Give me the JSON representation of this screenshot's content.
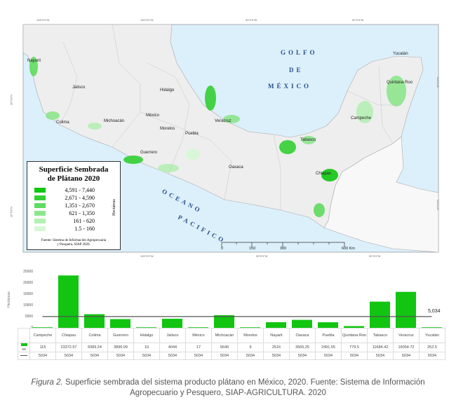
{
  "map": {
    "coords_top": [
      "105°0'0\"W",
      "100°0'0\"W",
      "95°0'0\"W",
      "90°0'0\"W"
    ],
    "coords_bottom": [
      "105°0'0\"W",
      "100°0'0\"W",
      "95°0'0\"W",
      "90°0'0\"W"
    ],
    "coords_left": [
      "20°0'0\"N",
      "15°0'0\"N"
    ],
    "coords_right": [
      "20°0'0\"N",
      "15°0'0\"N"
    ],
    "sea_labels": {
      "golfo": "GOLFO",
      "de": "DE",
      "mexico": "MÉXICO",
      "oceano": "OCEANO",
      "pacifico": "PACIFICO"
    },
    "states": [
      "Nayarit",
      "Jalisco",
      "Colima",
      "Michoacán",
      "Guerrero",
      "Hidalgo",
      "México",
      "Morelos",
      "Puebla",
      "Veracruz",
      "Oaxaca",
      "Tabasco",
      "Chiapas",
      "Campeche",
      "Yucatán",
      "Quintana Roo"
    ],
    "scale": {
      "ticks": [
        "0",
        "150",
        "300",
        "600 Km"
      ]
    },
    "legend": {
      "title_line1": "Superficie Sembrada",
      "title_line2": "de Plátano 2020",
      "unit": "Hectáreas",
      "classes": [
        {
          "range": "4,591  - 7,440",
          "color": "#11c511"
        },
        {
          "range": "2,671  - 4,590",
          "color": "#33cf33"
        },
        {
          "range": "1,351  - 2,670",
          "color": "#5fdb5f"
        },
        {
          "range": "621  - 1,350",
          "color": "#8de68d"
        },
        {
          "range": "161  -    620",
          "color": "#b5f0b5"
        },
        {
          "range": "1.5 -   160",
          "color": "#d6f8d6"
        }
      ],
      "source_line1": "Fuente: Sistema de Información Agropecuaria",
      "source_line2": "y Pesquera, SIAP 2020."
    }
  },
  "chart_data": {
    "type": "bar",
    "ylabel": "Hectáreas",
    "ylim": [
      0,
      25000
    ],
    "yticks": [
      "0",
      "5000",
      "10000",
      "15000",
      "20000",
      "25000"
    ],
    "categories": [
      "Campeche",
      "Chiapas",
      "Colima",
      "Guerrero",
      "Hidalgo",
      "Jalisco",
      "México",
      "Michoacán",
      "Morelos",
      "Nayarit",
      "Oaxaca",
      "Puebla",
      "Quintana Roo",
      "Tabasco",
      "Veracruz",
      "Yucatán"
    ],
    "series": [
      {
        "name": "ss",
        "color": "#11c511",
        "values": [
          115,
          23372.57,
          6089.24,
          3896.99,
          10,
          4044,
          17,
          5649,
          9,
          2516,
          3565.25,
          2491.55,
          779.5,
          11684.42,
          16054.72,
          252.5
        ],
        "labels": [
          "115",
          "23372.57",
          "6089.24",
          "3896.99",
          "10",
          "4044",
          "17",
          "5649",
          "9",
          "2516",
          "3565.25",
          "2491.55",
          "779.5",
          "11684.42",
          "16054.72",
          "252.5"
        ]
      },
      {
        "name": "",
        "color": "#555555",
        "type": "line",
        "values": [
          5034,
          5034,
          5034,
          5034,
          5034,
          5034,
          5034,
          5034,
          5034,
          5034,
          5034,
          5034,
          5034,
          5034,
          5034,
          5034
        ],
        "labels": [
          "5034",
          "5034",
          "5034",
          "5034",
          "5034",
          "5034",
          "5034",
          "5034",
          "5034",
          "5034",
          "5034",
          "5034",
          "5034",
          "5034",
          "5034",
          "5034"
        ]
      }
    ],
    "reference_label": "5,034"
  },
  "caption": {
    "figure": "Figura 2.",
    "text_line1": " Superficie sembrada del sistema producto plátano en México, 2020. Fuente: Sistema de Información",
    "text_line2": "Agropecuario y Pesquero, SIAP-AGRICULTURA. 2020"
  }
}
